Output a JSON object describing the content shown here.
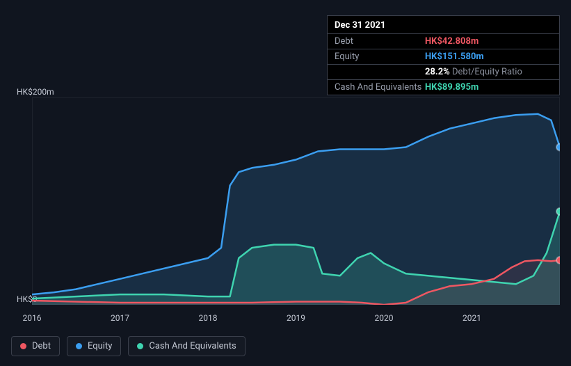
{
  "chart": {
    "type": "area",
    "background_color": "#10151f",
    "plot_background": "#10151f",
    "grid_color": "#2a2f3a",
    "text_color": "#c4c9d4",
    "xlim": [
      2016,
      2022
    ],
    "ylim": [
      0,
      200
    ],
    "y_ticks": [
      {
        "value": 0,
        "label": "HK$0"
      },
      {
        "value": 200,
        "label": "HK$200m"
      }
    ],
    "x_ticks": [
      {
        "value": 2016,
        "label": "2016"
      },
      {
        "value": 2017,
        "label": "2017"
      },
      {
        "value": 2018,
        "label": "2018"
      },
      {
        "value": 2019,
        "label": "2019"
      },
      {
        "value": 2020,
        "label": "2020"
      },
      {
        "value": 2021,
        "label": "2021"
      }
    ],
    "series": [
      {
        "key": "equity",
        "label": "Equity",
        "color": "#3b9ef0",
        "fill_opacity": 0.18,
        "line_width": 2.5,
        "data": [
          [
            2016.0,
            10
          ],
          [
            2016.25,
            12
          ],
          [
            2016.5,
            15
          ],
          [
            2016.75,
            20
          ],
          [
            2017.0,
            25
          ],
          [
            2017.25,
            30
          ],
          [
            2017.5,
            35
          ],
          [
            2017.75,
            40
          ],
          [
            2018.0,
            45
          ],
          [
            2018.15,
            55
          ],
          [
            2018.25,
            115
          ],
          [
            2018.35,
            128
          ],
          [
            2018.5,
            132
          ],
          [
            2018.75,
            135
          ],
          [
            2019.0,
            140
          ],
          [
            2019.25,
            148
          ],
          [
            2019.5,
            150
          ],
          [
            2019.75,
            150
          ],
          [
            2020.0,
            150
          ],
          [
            2020.25,
            152
          ],
          [
            2020.5,
            162
          ],
          [
            2020.75,
            170
          ],
          [
            2021.0,
            175
          ],
          [
            2021.25,
            180
          ],
          [
            2021.5,
            183
          ],
          [
            2021.75,
            184
          ],
          [
            2021.9,
            178
          ],
          [
            2022.0,
            152
          ]
        ]
      },
      {
        "key": "cash",
        "label": "Cash And Equivalents",
        "color": "#3fd4b0",
        "fill_opacity": 0.2,
        "line_width": 2.5,
        "data": [
          [
            2016.0,
            6
          ],
          [
            2016.5,
            8
          ],
          [
            2017.0,
            10
          ],
          [
            2017.5,
            10
          ],
          [
            2018.0,
            8
          ],
          [
            2018.25,
            8
          ],
          [
            2018.35,
            45
          ],
          [
            2018.5,
            55
          ],
          [
            2018.75,
            58
          ],
          [
            2019.0,
            58
          ],
          [
            2019.2,
            55
          ],
          [
            2019.3,
            30
          ],
          [
            2019.5,
            28
          ],
          [
            2019.7,
            45
          ],
          [
            2019.85,
            50
          ],
          [
            2020.0,
            40
          ],
          [
            2020.25,
            30
          ],
          [
            2020.5,
            28
          ],
          [
            2020.75,
            26
          ],
          [
            2021.0,
            24
          ],
          [
            2021.25,
            22
          ],
          [
            2021.5,
            20
          ],
          [
            2021.7,
            28
          ],
          [
            2021.85,
            50
          ],
          [
            2022.0,
            90
          ]
        ]
      },
      {
        "key": "debt",
        "label": "Debt",
        "color": "#ef5762",
        "fill_opacity": 0.1,
        "line_width": 2.5,
        "data": [
          [
            2016.0,
            4
          ],
          [
            2016.5,
            3
          ],
          [
            2017.0,
            2
          ],
          [
            2017.5,
            2
          ],
          [
            2018.0,
            2
          ],
          [
            2018.5,
            2
          ],
          [
            2019.0,
            3
          ],
          [
            2019.5,
            3
          ],
          [
            2019.75,
            2
          ],
          [
            2020.0,
            0
          ],
          [
            2020.25,
            2
          ],
          [
            2020.5,
            12
          ],
          [
            2020.75,
            18
          ],
          [
            2021.0,
            20
          ],
          [
            2021.25,
            25
          ],
          [
            2021.45,
            36
          ],
          [
            2021.6,
            42
          ],
          [
            2021.75,
            43
          ],
          [
            2021.9,
            42
          ],
          [
            2022.0,
            43
          ]
        ]
      }
    ],
    "end_markers": [
      {
        "key": "equity",
        "x": 2022.0,
        "y": 152,
        "color": "#3b9ef0"
      },
      {
        "key": "cash",
        "x": 2022.0,
        "y": 90,
        "color": "#3fd4b0"
      },
      {
        "key": "debt",
        "x": 2022.0,
        "y": 43,
        "color": "#ef5762"
      }
    ]
  },
  "tooltip": {
    "date": "Dec 31 2021",
    "rows": [
      {
        "label": "Debt",
        "value": "HK$42.808m",
        "color": "#ef5762"
      },
      {
        "label": "Equity",
        "value": "HK$151.580m",
        "color": "#3b9ef0"
      },
      {
        "label": "",
        "value": "28.2%",
        "suffix": "Debt/Equity Ratio",
        "color": "#ffffff"
      },
      {
        "label": "Cash And Equivalents",
        "value": "HK$89.895m",
        "color": "#3fd4b0"
      }
    ]
  },
  "legend": {
    "items": [
      {
        "key": "debt",
        "label": "Debt",
        "color": "#ef5762"
      },
      {
        "key": "equity",
        "label": "Equity",
        "color": "#3b9ef0"
      },
      {
        "key": "cash",
        "label": "Cash And Equivalents",
        "color": "#3fd4b0"
      }
    ]
  }
}
